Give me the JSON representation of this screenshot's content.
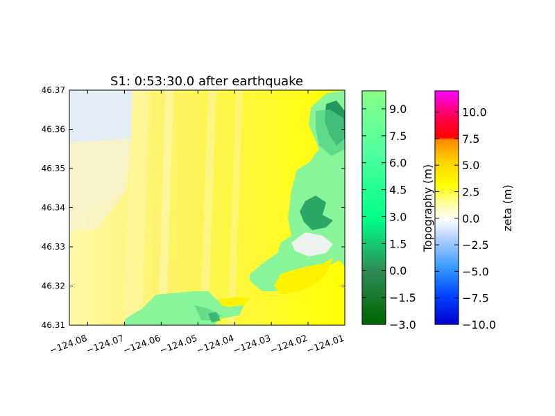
{
  "chart_data": {
    "type": "heatmap",
    "title": "S1: 0:53:30.0 after earthquake",
    "xlabel": "",
    "ylabel": "",
    "xlim": [
      -124.085,
      -124.01
    ],
    "ylim": [
      46.31,
      46.37
    ],
    "x_ticks": [
      -124.08,
      -124.07,
      -124.06,
      -124.05,
      -124.04,
      -124.03,
      -124.02,
      -124.01
    ],
    "x_tick_labels": [
      "−124.08",
      "−124.07",
      "−124.06",
      "−124.05",
      "−124.04",
      "−124.03",
      "−124.02",
      "−124.01"
    ],
    "y_ticks": [
      46.31,
      46.32,
      46.33,
      46.34,
      46.35,
      46.36,
      46.37
    ],
    "y_tick_labels": [
      "46.31",
      "46.32",
      "46.33",
      "46.34",
      "46.35",
      "46.36",
      "46.37"
    ],
    "grid": false,
    "colorbars": [
      {
        "label": "Topography (m)",
        "range": [
          -3.0,
          10.0
        ],
        "ticks": [
          -3.0,
          -1.5,
          0.0,
          1.5,
          3.0,
          4.5,
          6.0,
          7.5,
          9.0
        ],
        "tick_labels": [
          "−3.0",
          "−1.5",
          "0.0",
          "1.5",
          "3.0",
          "4.5",
          "6.0",
          "7.5",
          "9.0"
        ],
        "colors": [
          "#006400",
          "#2e8b57",
          "#00ff88",
          "#7fff7f",
          "#80ff80"
        ]
      },
      {
        "label": "zeta (m)",
        "range": [
          -10.0,
          12.0
        ],
        "ticks": [
          -10.0,
          -7.5,
          -5.0,
          -2.5,
          0.0,
          2.5,
          5.0,
          7.5,
          10.0
        ],
        "tick_labels": [
          "−10.0",
          "−7.5",
          "−5.0",
          "−2.5",
          "0.0",
          "2.5",
          "5.0",
          "7.5",
          "10.0"
        ],
        "colors": [
          "#0000cc",
          "#0055ff",
          "#4499ff",
          "#cce0ff",
          "#ffffff",
          "#ffff00",
          "#ffd700",
          "#ff8c00",
          "#ff0000",
          "#ff00ff"
        ]
      }
    ],
    "field_colors": {
      "water_low": "#dde9fb",
      "water_mid": "#fff59a",
      "water_high": "#ffff00",
      "land": "#88f59a",
      "land_dark": "#22985a",
      "land_mid": "#4fd085"
    }
  }
}
